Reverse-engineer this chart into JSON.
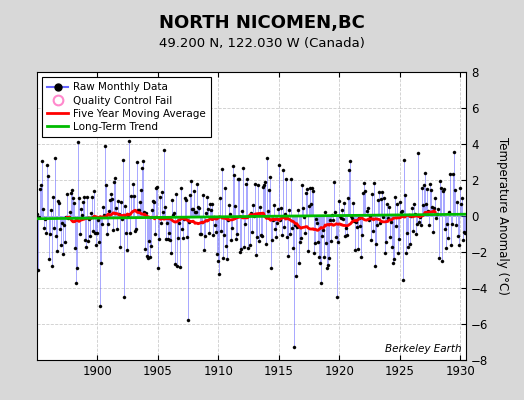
{
  "title": "NORTH NICOMEN,BC",
  "subtitle": "49.200 N, 122.030 W (Canada)",
  "ylabel": "Temperature Anomaly (°C)",
  "watermark": "Berkeley Earth",
  "start_year": 1895.0,
  "end_year": 1930.5,
  "ylim": [
    -8,
    8
  ],
  "yticks": [
    -8,
    -6,
    -4,
    -2,
    0,
    2,
    4,
    6,
    8
  ],
  "xticks": [
    1900,
    1905,
    1910,
    1915,
    1920,
    1925,
    1930
  ],
  "bg_color": "#d8d8d8",
  "plot_bg_color": "#ffffff",
  "raw_line_color": "#6666ff",
  "raw_marker_color": "#000000",
  "moving_avg_color": "#ff0000",
  "trend_color": "#00bb00",
  "legend_items": [
    "Raw Monthly Data",
    "Quality Control Fail",
    "Five Year Moving Average",
    "Long-Term Trend"
  ],
  "seed": 17
}
